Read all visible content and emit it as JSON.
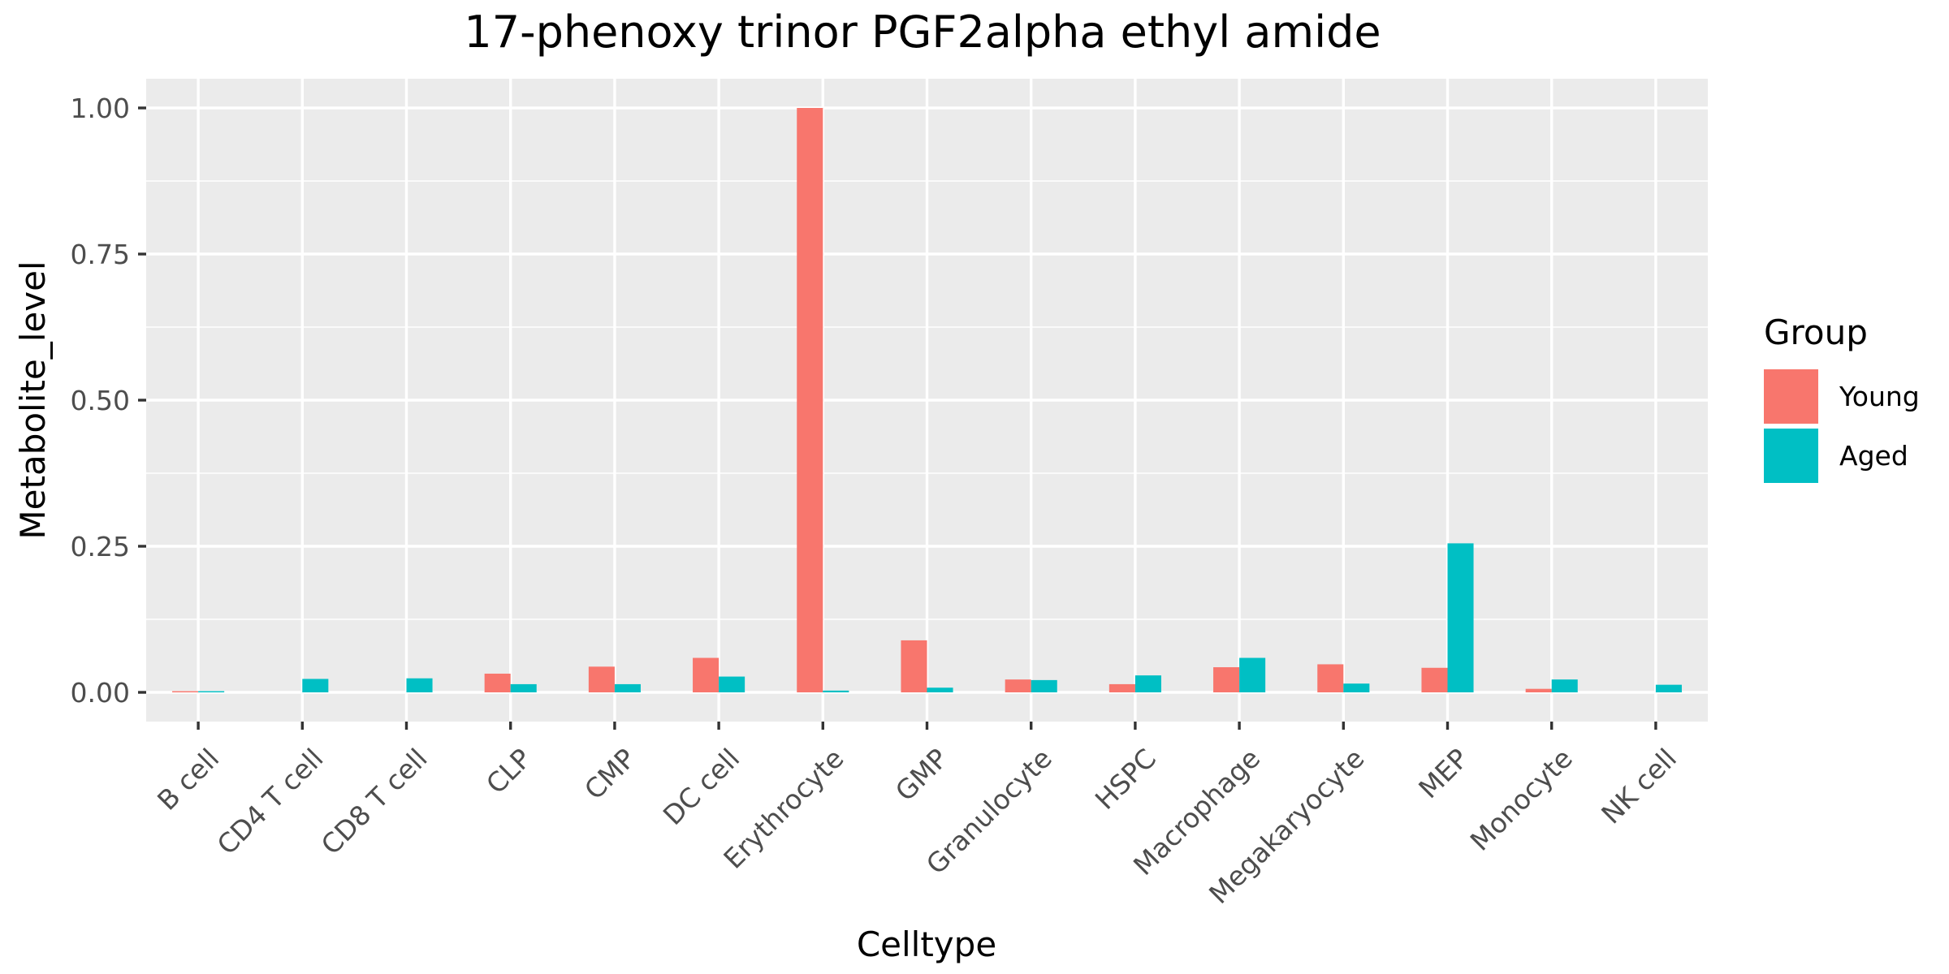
{
  "chart_data": {
    "type": "bar",
    "title": "17-phenoxy trinor PGF2alpha ethyl amide",
    "xlabel": "Celltype",
    "ylabel": "Metabolite_level",
    "ylim": [
      -0.05,
      1.05
    ],
    "yticks": [
      0.0,
      0.25,
      0.5,
      0.75,
      1.0
    ],
    "ytick_labels": [
      "0.00",
      "0.25",
      "0.50",
      "0.75",
      "1.00"
    ],
    "grid": true,
    "legend": {
      "title": "Group",
      "position": "right"
    },
    "categories": [
      "B cell",
      "CD4 T cell",
      "CD8 T cell",
      "CLP",
      "CMP",
      "DC cell",
      "Erythrocyte",
      "GMP",
      "Granulocyte",
      "HSPC",
      "Macrophage",
      "Megakaryocyte",
      "MEP",
      "Monocyte",
      "NK cell"
    ],
    "series": [
      {
        "name": "Young",
        "color": "#F8766D",
        "values": [
          0.002,
          0.0,
          0.0,
          0.032,
          0.044,
          0.059,
          1.0,
          0.089,
          0.022,
          0.014,
          0.043,
          0.048,
          0.042,
          0.006,
          0.0
        ]
      },
      {
        "name": "Aged",
        "color": "#00BFC4",
        "values": [
          0.002,
          0.023,
          0.024,
          0.014,
          0.014,
          0.027,
          0.003,
          0.008,
          0.021,
          0.029,
          0.059,
          0.015,
          0.255,
          0.022,
          0.013
        ]
      }
    ]
  }
}
